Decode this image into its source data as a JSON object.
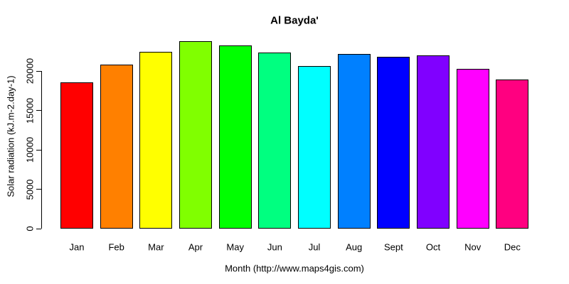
{
  "chart_data": {
    "type": "bar",
    "title": "Al Bayda'",
    "xlabel": "Month (http://www.maps4gis.com)",
    "ylabel": "Solar radiation (kJ.m-2.day-1)",
    "categories": [
      "Jan",
      "Feb",
      "Mar",
      "Apr",
      "May",
      "Jun",
      "Jul",
      "Aug",
      "Sept",
      "Oct",
      "Nov",
      "Dec"
    ],
    "values": [
      18600,
      20800,
      22400,
      23800,
      23200,
      22300,
      20600,
      22200,
      21800,
      22000,
      20300,
      18900
    ],
    "bar_colors": [
      "#FF0000",
      "#FF8000",
      "#FFFF00",
      "#80FF00",
      "#00FF00",
      "#00FF80",
      "#00FFFF",
      "#0080FF",
      "#0000FF",
      "#8000FF",
      "#FF00FF",
      "#FF0080"
    ],
    "bar_border_color": "#000000",
    "yaxis_ticks": [
      0,
      5000,
      10000,
      15000,
      20000
    ],
    "ylim": [
      0,
      20000
    ],
    "grid": false,
    "legend": false,
    "background_color": "#FFFFFF",
    "text_color": "#000000"
  }
}
